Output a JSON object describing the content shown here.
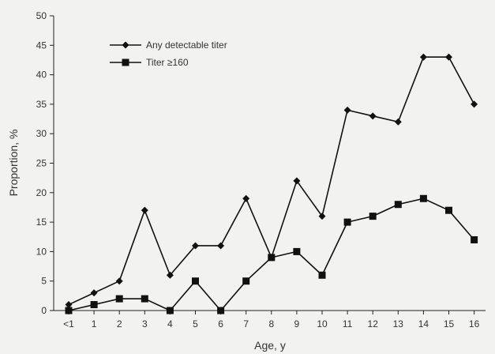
{
  "chart_data": {
    "type": "line",
    "title": "",
    "xlabel": "Age, y",
    "ylabel": "Proportion, %",
    "categories": [
      "<1",
      "1",
      "2",
      "3",
      "4",
      "5",
      "6",
      "7",
      "8",
      "9",
      "10",
      "11",
      "12",
      "13",
      "14",
      "15",
      "16"
    ],
    "ylim": [
      0,
      50
    ],
    "yticks": [
      0,
      5,
      10,
      15,
      20,
      25,
      30,
      35,
      40,
      45,
      50
    ],
    "grid": false,
    "legend_position": "top-left",
    "series": [
      {
        "name": "Any detectable titer",
        "marker": "diamond",
        "color": "#111111",
        "values": [
          1,
          3,
          5,
          17,
          6,
          11,
          11,
          19,
          9,
          22,
          16,
          34,
          33,
          32,
          43,
          43,
          35
        ]
      },
      {
        "name": "Titer ≥160",
        "marker": "square",
        "color": "#111111",
        "values": [
          0,
          1,
          2,
          2,
          0,
          5,
          0,
          5,
          9,
          10,
          6,
          15,
          16,
          18,
          19,
          17,
          12
        ]
      }
    ]
  }
}
